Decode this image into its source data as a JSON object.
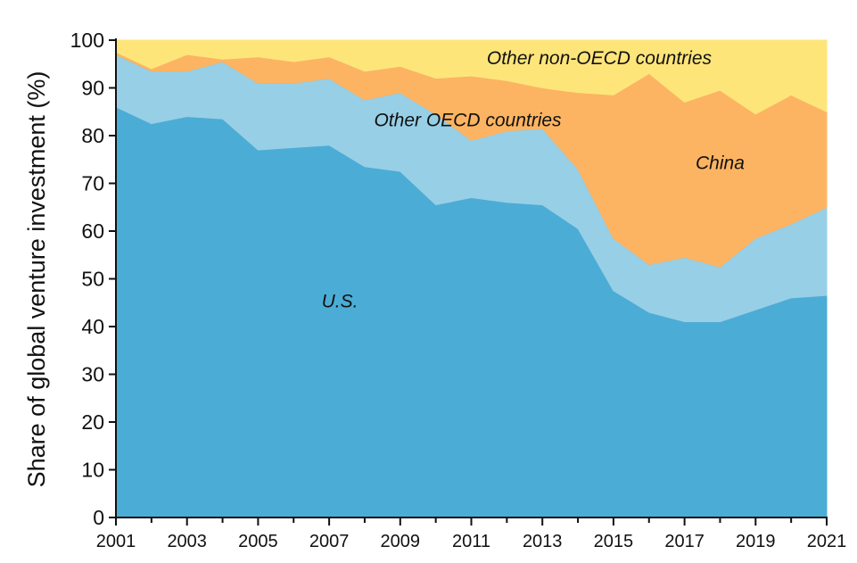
{
  "chart_data": {
    "type": "area",
    "stacked": true,
    "title": "",
    "xlabel": "",
    "ylabel": "Share of global venture investment (%)",
    "xlim": [
      2001,
      2021
    ],
    "ylim": [
      0,
      100
    ],
    "x_ticks": [
      2001,
      2003,
      2005,
      2007,
      2009,
      2011,
      2013,
      2015,
      2017,
      2019,
      2021
    ],
    "y_ticks": [
      0,
      10,
      20,
      30,
      40,
      50,
      60,
      70,
      80,
      90,
      100
    ],
    "grid": false,
    "x": [
      2001,
      2002,
      2003,
      2004,
      2005,
      2006,
      2007,
      2008,
      2009,
      2010,
      2011,
      2012,
      2013,
      2014,
      2015,
      2016,
      2017,
      2018,
      2019,
      2020,
      2021
    ],
    "series": [
      {
        "name": "U.S.",
        "color": "#4badd6",
        "values": [
          86,
          82.5,
          84,
          83.5,
          77,
          77.5,
          78,
          73.5,
          72.5,
          65.5,
          67,
          66,
          65.5,
          60.5,
          47.5,
          43,
          41,
          41,
          43.5,
          46,
          46.5
        ]
      },
      {
        "name": "Other OECD countries",
        "color": "#97cfe7",
        "values": [
          11,
          11,
          9.5,
          12,
          14,
          13.5,
          14,
          14,
          16.5,
          19,
          12,
          15,
          16,
          12.5,
          11,
          10,
          13.5,
          11.5,
          15,
          15.5,
          18.5
        ]
      },
      {
        "name": "China",
        "color": "#fdb462",
        "values": [
          0.5,
          0.5,
          3.5,
          0.5,
          5.5,
          4.5,
          4.5,
          6,
          5.5,
          7.5,
          13.5,
          10.5,
          8.5,
          16,
          30,
          40,
          32.5,
          37,
          26,
          27,
          20
        ]
      },
      {
        "name": "Other non-OECD countries",
        "color": "#fee57a",
        "values": [
          2.5,
          6,
          3,
          4,
          3.5,
          4.5,
          3.5,
          6.5,
          5.5,
          8,
          7.5,
          8.5,
          10,
          11,
          11.5,
          7,
          13,
          10.5,
          15.5,
          11.5,
          15
        ]
      }
    ],
    "annotations": [
      {
        "text": "Other non-OECD countries",
        "x": 2014.6,
        "y": 95
      },
      {
        "text": "Other OECD countries",
        "x": 2010.9,
        "y": 82
      },
      {
        "text": "China",
        "x": 2018.0,
        "y": 73
      },
      {
        "text": "U.S.",
        "x": 2007.3,
        "y": 44
      }
    ]
  }
}
